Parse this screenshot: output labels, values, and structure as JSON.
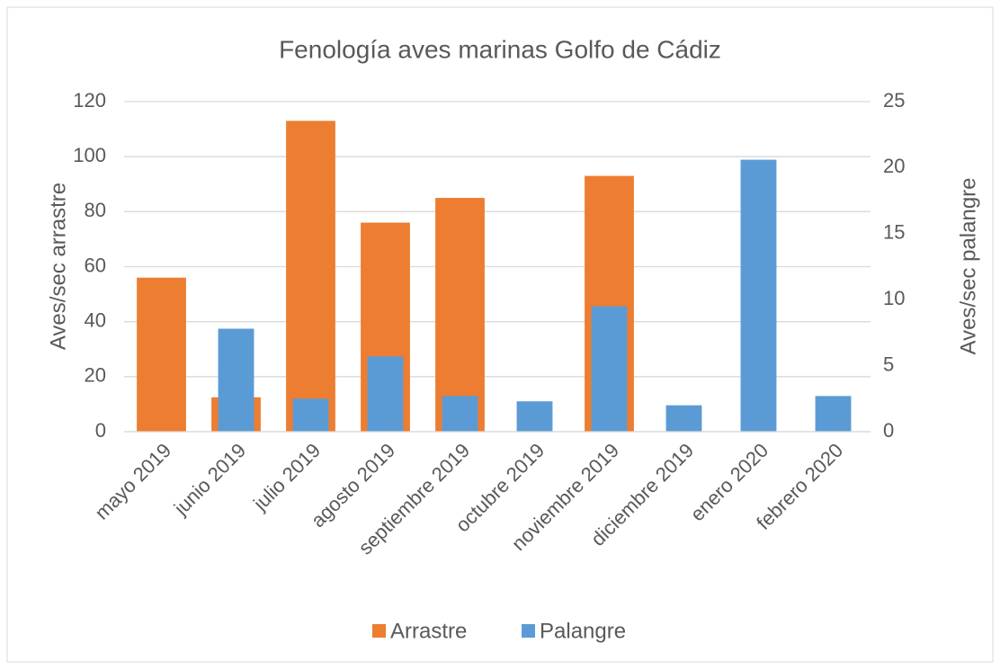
{
  "chart_data": {
    "type": "bar",
    "title": "Fenología aves marinas Golfo de Cádiz",
    "y_label": "Aves/sec arrastre",
    "y2_label": "Aves/sec palangre",
    "categories": [
      "mayo 2019",
      "junio 2019",
      "julio 2019",
      "agosto 2019",
      "septiembre 2019",
      "octubre 2019",
      "noviembre 2019",
      "diciembre 2019",
      "enero 2020",
      "febrero 2020"
    ],
    "series": [
      {
        "name": "Arrastre",
        "color": "#ed7d31",
        "values": [
          56,
          12.5,
          113,
          76,
          85,
          0,
          93,
          0,
          0,
          0
        ]
      },
      {
        "name": "Palangre",
        "color": "#5b9bd5",
        "axis": "y2",
        "values": [
          0,
          7.8,
          2.5,
          5.7,
          2.7,
          2.3,
          9.5,
          2.0,
          20.6,
          2.7
        ]
      }
    ],
    "ylim": [
      0,
      120
    ],
    "yticks": [
      0,
      20,
      40,
      60,
      80,
      100,
      120
    ],
    "y2lim": [
      0,
      25
    ],
    "y2ticks": [
      0,
      5,
      10,
      15,
      20,
      25
    ],
    "grid": true,
    "legend": "bottom"
  }
}
